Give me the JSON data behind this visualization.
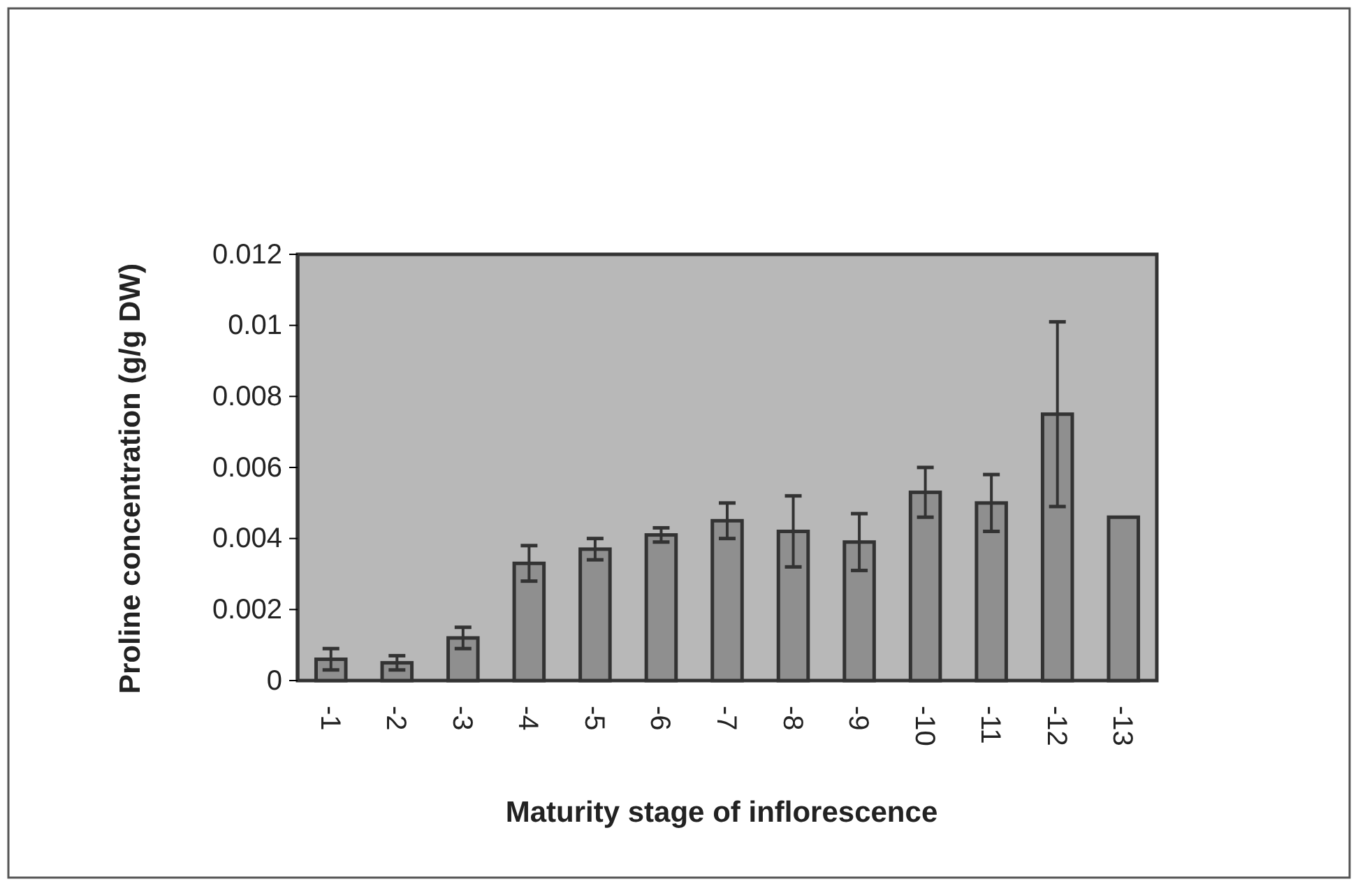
{
  "chart_data": {
    "type": "bar",
    "xlabel": "Maturity stage of inflorescence",
    "ylabel": "Proline concentration (g/g DW)",
    "categories": [
      "-1",
      "-2",
      "-3",
      "-4",
      "-5",
      "-6",
      "-7",
      "-8",
      "-9",
      "-10",
      "-11",
      "-12",
      "-13"
    ],
    "values": [
      0.0006,
      0.0005,
      0.0012,
      0.0033,
      0.0037,
      0.0041,
      0.0045,
      0.0042,
      0.0039,
      0.0053,
      0.005,
      0.0075,
      0.0046
    ],
    "errors": [
      0.0003,
      0.0002,
      0.0003,
      0.0005,
      0.0003,
      0.0002,
      0.0005,
      0.001,
      0.0008,
      0.0007,
      0.0008,
      0.0026,
      null
    ],
    "color": "#8f8f8f",
    "ylim": [
      0,
      0.012
    ],
    "yticks": [
      0,
      {
        "value": 0.002,
        "label": "0.002"
      },
      {
        "value": 0.004,
        "label": "0.004"
      },
      {
        "value": 0.006,
        "label": "0.006"
      },
      {
        "value": 0.008,
        "label": "0.008"
      },
      {
        "value": 0.01,
        "label": "0.01"
      },
      {
        "value": 0.012,
        "label": "0.012"
      }
    ],
    "grid": false
  }
}
